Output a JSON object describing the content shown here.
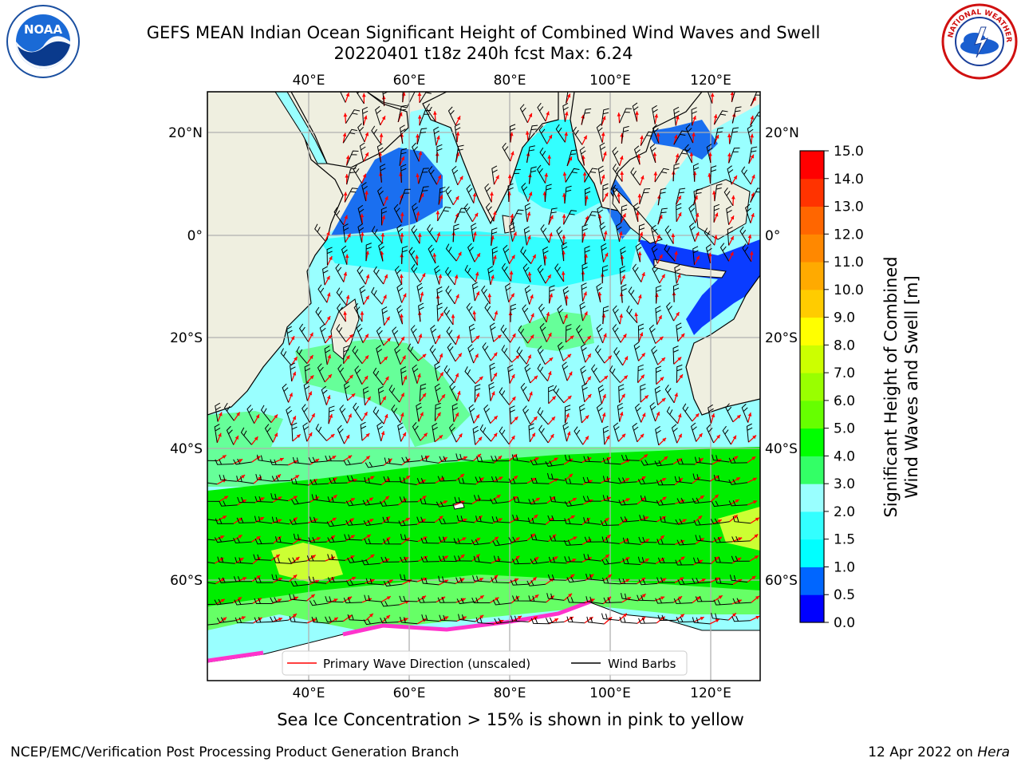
{
  "header": {
    "title_line1": "GEFS MEAN Indian Ocean Significant Height of Combined Wind Waves and Swell",
    "title_line2": "20220401 t18z 240h fcst   Max: 6.24"
  },
  "logos": {
    "noaa_text": "NOAA",
    "nws_text": "NATIONAL WEATHER SERVICE"
  },
  "map": {
    "lon_ticks": [
      "40°E",
      "60°E",
      "80°E",
      "100°E",
      "120°E"
    ],
    "lat_ticks_left": [
      "20°N",
      "0°",
      "20°S",
      "40°S",
      "60°S"
    ],
    "lat_ticks_right": [
      "20°N",
      "0°",
      "20°S",
      "40°S",
      "60°S"
    ],
    "land_color": "#efefe0",
    "grid_color": "#b0b0b0"
  },
  "legend": {
    "wave_label": "Primary Wave Direction (unscaled)",
    "barb_label": "Wind Barbs",
    "wave_color": "#ff0000",
    "barb_color": "#000000"
  },
  "colorbar": {
    "label_line1": "Significant Height of Combined",
    "label_line2": "Wind Waves and Swell [m]",
    "ticks": [
      "15.0",
      "14.0",
      "13.0",
      "12.0",
      "11.0",
      "10.0",
      "9.0",
      "8.0",
      "7.0",
      "6.0",
      "5.0",
      "4.0",
      "3.0",
      "2.0",
      "1.5",
      "1.0",
      "0.5",
      "0.0"
    ],
    "colors": [
      "#0000ff",
      "#0066ff",
      "#00ffff",
      "#33ffff",
      "#99ffff",
      "#33ff66",
      "#00ff00",
      "#66ff00",
      "#99ff00",
      "#ccff00",
      "#ffff00",
      "#ffcc00",
      "#ffaa00",
      "#ff8800",
      "#ff6600",
      "#ff3300",
      "#ff0000"
    ]
  },
  "footer": {
    "ice_note": "Sea Ice Concentration > 15% is shown in pink to yellow",
    "credit": "NCEP/EMC/Verification Post Processing Product Generation Branch",
    "date": "12 Apr 2022 on ",
    "machine": "Hera"
  }
}
